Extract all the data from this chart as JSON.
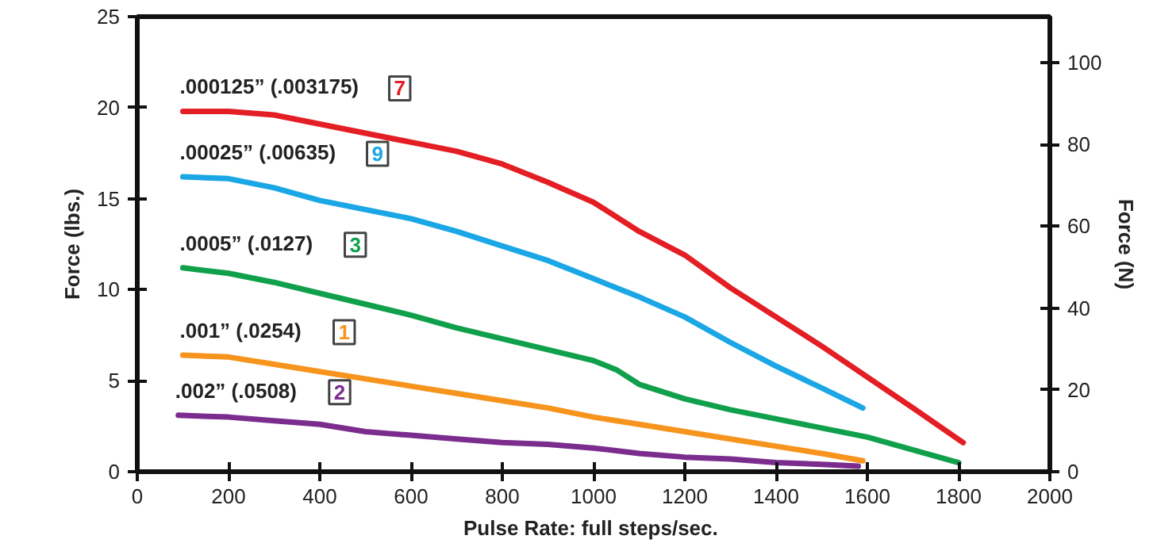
{
  "chart_data": {
    "type": "line",
    "xlabel": "Pulse Rate:  full steps/sec.",
    "ylabel": "Force (lbs.)",
    "y2label": "Force (N)",
    "xlim": [
      0,
      2000
    ],
    "xticks": [
      0,
      200,
      400,
      600,
      800,
      1000,
      1200,
      1400,
      1600,
      1800,
      2000
    ],
    "ylim": [
      0,
      25
    ],
    "yticks": [
      0,
      5,
      10,
      15,
      20,
      25
    ],
    "y2lim": [
      0,
      111.2
    ],
    "y2ticks": [
      0,
      20,
      40,
      60,
      80,
      100
    ],
    "grid": false,
    "line_style": "solid",
    "marker": "none",
    "annotations": [
      "7",
      "9",
      "3",
      "1",
      "2"
    ],
    "series": [
      {
        "name": ".000125” (.003175)",
        "color": "#e31e24",
        "x": [
          100,
          200,
          300,
          400,
          500,
          600,
          700,
          800,
          900,
          1000,
          1100,
          1200,
          1300,
          1400,
          1500,
          1600,
          1700,
          1810
        ],
        "values": [
          19.8,
          19.8,
          19.6,
          19.1,
          18.6,
          18.1,
          17.6,
          16.9,
          15.9,
          14.8,
          13.2,
          11.9,
          10.1,
          8.5,
          6.9,
          5.2,
          3.5,
          1.6
        ]
      },
      {
        "name": ".00025” (.00635)",
        "color": "#1ba6e5",
        "x": [
          100,
          200,
          300,
          400,
          500,
          600,
          700,
          800,
          900,
          1000,
          1100,
          1200,
          1300,
          1400,
          1500,
          1590
        ],
        "values": [
          16.2,
          16.1,
          15.6,
          14.9,
          14.4,
          13.9,
          13.2,
          12.4,
          11.6,
          10.6,
          9.6,
          8.5,
          7.1,
          5.8,
          4.6,
          3.5
        ]
      },
      {
        "name": ".0005” (.0127)",
        "color": "#10a04b",
        "x": [
          100,
          200,
          300,
          400,
          500,
          600,
          700,
          800,
          900,
          1000,
          1050,
          1100,
          1200,
          1300,
          1400,
          1500,
          1600,
          1800
        ],
        "values": [
          11.2,
          10.9,
          10.4,
          9.8,
          9.2,
          8.6,
          7.9,
          7.3,
          6.7,
          6.1,
          5.6,
          4.8,
          4.0,
          3.4,
          2.9,
          2.4,
          1.9,
          0.5
        ]
      },
      {
        "name": ".001” (.0254)",
        "color": "#f7941d",
        "x": [
          100,
          200,
          300,
          400,
          500,
          600,
          700,
          800,
          900,
          1000,
          1100,
          1200,
          1300,
          1400,
          1500,
          1590
        ],
        "values": [
          6.4,
          6.3,
          5.9,
          5.5,
          5.1,
          4.7,
          4.3,
          3.9,
          3.5,
          3.0,
          2.6,
          2.2,
          1.8,
          1.4,
          1.0,
          0.6
        ]
      },
      {
        "name": ".002” (.0508)",
        "color": "#7b2d8e",
        "x": [
          90,
          200,
          300,
          400,
          500,
          600,
          700,
          800,
          900,
          1000,
          1100,
          1200,
          1300,
          1400,
          1500,
          1580
        ],
        "values": [
          3.1,
          3.0,
          2.8,
          2.6,
          2.2,
          2.0,
          1.8,
          1.6,
          1.5,
          1.3,
          1.0,
          0.8,
          0.7,
          0.5,
          0.4,
          0.3
        ]
      }
    ]
  }
}
